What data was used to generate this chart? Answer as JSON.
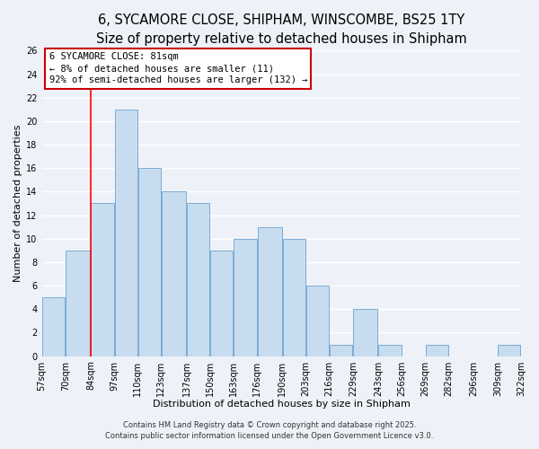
{
  "title": "6, SYCAMORE CLOSE, SHIPHAM, WINSCOMBE, BS25 1TY",
  "subtitle": "Size of property relative to detached houses in Shipham",
  "xlabel": "Distribution of detached houses by size in Shipham",
  "ylabel": "Number of detached properties",
  "bar_color": "#c8dcf0",
  "bar_edge_color": "#7aadd4",
  "background_color": "#eef2f8",
  "grid_color": "#ffffff",
  "categories": [
    "57sqm",
    "70sqm",
    "84sqm",
    "97sqm",
    "110sqm",
    "123sqm",
    "137sqm",
    "150sqm",
    "163sqm",
    "176sqm",
    "190sqm",
    "203sqm",
    "216sqm",
    "229sqm",
    "243sqm",
    "256sqm",
    "269sqm",
    "282sqm",
    "296sqm",
    "309sqm",
    "322sqm"
  ],
  "bar_left_edges": [
    57,
    70,
    84,
    97,
    110,
    123,
    137,
    150,
    163,
    176,
    190,
    203,
    216,
    229,
    243,
    256,
    269,
    282,
    296,
    309
  ],
  "bar_widths": [
    13,
    14,
    13,
    13,
    13,
    14,
    13,
    13,
    13,
    14,
    13,
    13,
    13,
    14,
    13,
    13,
    13,
    14,
    13,
    13
  ],
  "bar_heights": [
    5,
    9,
    13,
    21,
    16,
    14,
    13,
    9,
    10,
    11,
    10,
    6,
    1,
    4,
    1,
    0,
    1,
    0,
    0,
    1
  ],
  "red_line_x": 84,
  "ylim": [
    0,
    26
  ],
  "xlim": [
    57,
    322
  ],
  "yticks": [
    0,
    2,
    4,
    6,
    8,
    10,
    12,
    14,
    16,
    18,
    20,
    22,
    24,
    26
  ],
  "annotation_title": "6 SYCAMORE CLOSE: 81sqm",
  "annotation_line1": "← 8% of detached houses are smaller (11)",
  "annotation_line2": "92% of semi-detached houses are larger (132) →",
  "annotation_box_color": "#ffffff",
  "annotation_box_edge_color": "#cc0000",
  "footer_line1": "Contains HM Land Registry data © Crown copyright and database right 2025.",
  "footer_line2": "Contains public sector information licensed under the Open Government Licence v3.0.",
  "title_fontsize": 10.5,
  "subtitle_fontsize": 9,
  "axis_label_fontsize": 8,
  "tick_fontsize": 7,
  "annotation_fontsize": 7.5,
  "footer_fontsize": 6
}
